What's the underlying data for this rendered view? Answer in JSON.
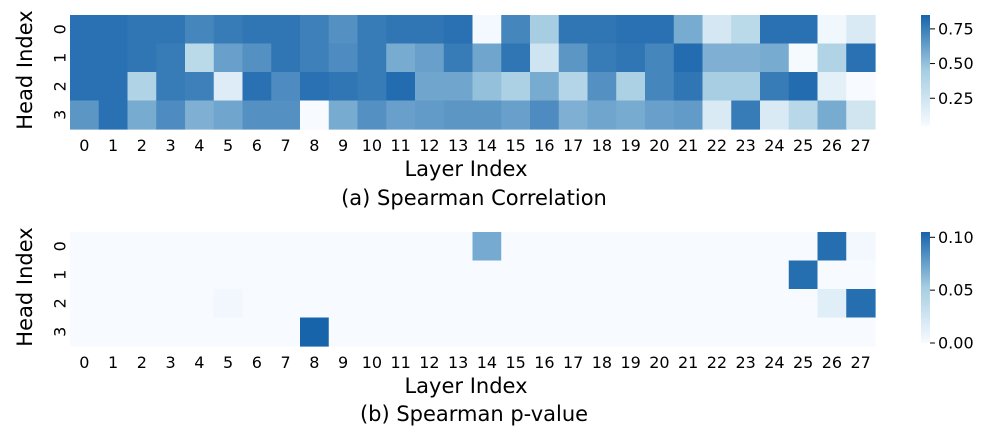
{
  "colormap": {
    "low": "#f7fbff",
    "mid": "#a6cde2",
    "high": "#1764ab"
  },
  "chart_data": [
    {
      "type": "heatmap",
      "title": "(a) Spearman Correlation",
      "xlabel": "Layer Index",
      "ylabel": "Head Index",
      "x_ticks": [
        "0",
        "1",
        "2",
        "3",
        "4",
        "5",
        "6",
        "7",
        "8",
        "9",
        "10",
        "11",
        "12",
        "13",
        "14",
        "15",
        "16",
        "17",
        "18",
        "19",
        "20",
        "21",
        "22",
        "23",
        "24",
        "25",
        "26",
        "27"
      ],
      "y_ticks": [
        "0",
        "1",
        "2",
        "3"
      ],
      "color_range": [
        0.05,
        0.85
      ],
      "colorbar_ticks": [
        "0.25",
        "0.50",
        "0.75"
      ],
      "colorbar_values": [
        0.25,
        0.5,
        0.75
      ],
      "values": [
        [
          0.8,
          0.8,
          0.78,
          0.78,
          0.72,
          0.76,
          0.78,
          0.78,
          0.74,
          0.68,
          0.76,
          0.78,
          0.78,
          0.8,
          0.07,
          0.72,
          0.45,
          0.78,
          0.78,
          0.8,
          0.8,
          0.58,
          0.22,
          0.35,
          0.8,
          0.8,
          0.08,
          0.2
        ],
        [
          0.8,
          0.8,
          0.78,
          0.76,
          0.35,
          0.62,
          0.68,
          0.78,
          0.74,
          0.7,
          0.76,
          0.58,
          0.62,
          0.76,
          0.6,
          0.78,
          0.25,
          0.66,
          0.76,
          0.78,
          0.72,
          0.82,
          0.56,
          0.56,
          0.58,
          0.06,
          0.4,
          0.8
        ],
        [
          0.8,
          0.8,
          0.4,
          0.76,
          0.74,
          0.18,
          0.8,
          0.7,
          0.8,
          0.78,
          0.76,
          0.82,
          0.6,
          0.6,
          0.5,
          0.42,
          0.58,
          0.38,
          0.68,
          0.42,
          0.72,
          0.78,
          0.44,
          0.44,
          0.76,
          0.82,
          0.15,
          0.05
        ],
        [
          0.66,
          0.8,
          0.58,
          0.7,
          0.56,
          0.6,
          0.68,
          0.68,
          0.05,
          0.58,
          0.68,
          0.62,
          0.64,
          0.66,
          0.66,
          0.62,
          0.7,
          0.56,
          0.6,
          0.58,
          0.62,
          0.64,
          0.2,
          0.76,
          0.2,
          0.36,
          0.58,
          0.24
        ]
      ]
    },
    {
      "type": "heatmap",
      "title": "(b) Spearman p-value",
      "xlabel": "Layer Index",
      "ylabel": "Head Index",
      "x_ticks": [
        "0",
        "1",
        "2",
        "3",
        "4",
        "5",
        "6",
        "7",
        "8",
        "9",
        "10",
        "11",
        "12",
        "13",
        "14",
        "15",
        "16",
        "17",
        "18",
        "19",
        "20",
        "21",
        "22",
        "23",
        "24",
        "25",
        "26",
        "27"
      ],
      "y_ticks": [
        "0",
        "1",
        "2",
        "3"
      ],
      "color_range": [
        0.0,
        0.105
      ],
      "colorbar_ticks": [
        "0.00",
        "0.05",
        "0.10"
      ],
      "colorbar_values": [
        0.0,
        0.05,
        0.1
      ],
      "values": [
        [
          0,
          0,
          0,
          0,
          0,
          0,
          0,
          0,
          0,
          0,
          0,
          0,
          0,
          0,
          0.07,
          0,
          0,
          0,
          0,
          0,
          0,
          0,
          0,
          0,
          0,
          0,
          0.1,
          0.003
        ],
        [
          0,
          0,
          0,
          0,
          0,
          0,
          0,
          0,
          0,
          0,
          0,
          0,
          0,
          0,
          0,
          0,
          0,
          0,
          0,
          0,
          0,
          0,
          0,
          0,
          0,
          0.1,
          0,
          0
        ],
        [
          0,
          0,
          0,
          0,
          0,
          0.004,
          0,
          0,
          0,
          0,
          0,
          0,
          0,
          0,
          0,
          0,
          0,
          0,
          0,
          0,
          0,
          0,
          0,
          0,
          0,
          0,
          0.015,
          0.1
        ],
        [
          0,
          0,
          0,
          0,
          0,
          0,
          0,
          0,
          0.105,
          0,
          0,
          0,
          0,
          0,
          0,
          0,
          0,
          0,
          0,
          0,
          0,
          0,
          0,
          0,
          0,
          0,
          0,
          0
        ]
      ]
    }
  ]
}
